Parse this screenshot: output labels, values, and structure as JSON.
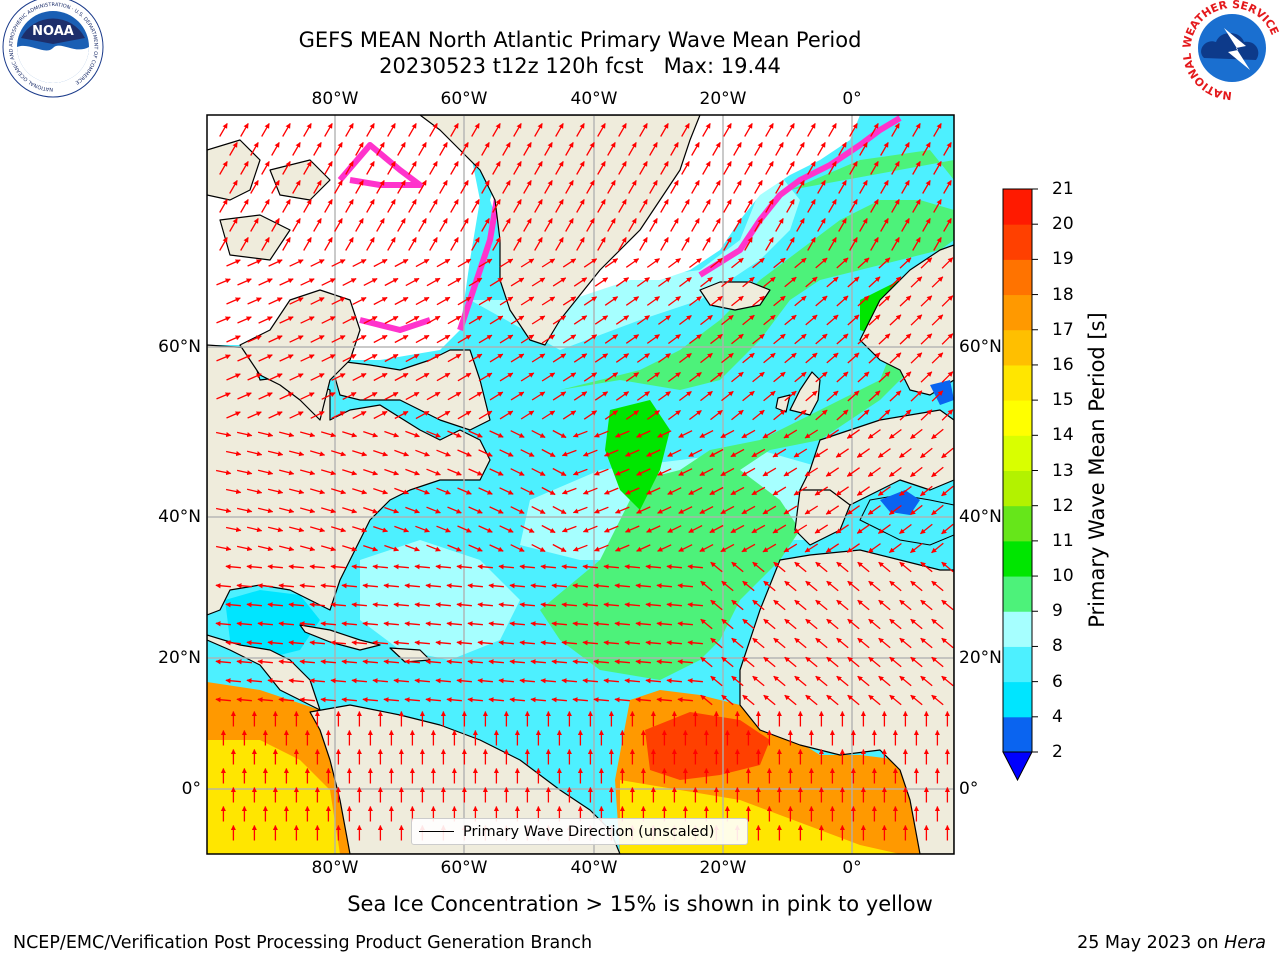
{
  "title_line1": "GEFS MEAN North Atlantic Primary Wave Mean Period",
  "title_line2": "20230523 t12z 120h fcst   Max: 19.44",
  "axes": {
    "lon_labels": [
      "80°W",
      "60°W",
      "40°W",
      "20°W",
      "0°"
    ],
    "lat_labels": [
      "60°N",
      "40°N",
      "20°N",
      "0°"
    ]
  },
  "legend": {
    "label": "Primary Wave Direction (unscaled)"
  },
  "colorbar": {
    "label": "Primary Wave Mean Period [s]",
    "ticks": [
      "2",
      "4",
      "6",
      "8",
      "9",
      "10",
      "11",
      "12",
      "13",
      "14",
      "15",
      "16",
      "17",
      "18",
      "19",
      "20",
      "21"
    ],
    "colors": [
      "#0a64f0",
      "#00e5ff",
      "#4df0ff",
      "#a6ffff",
      "#4df27a",
      "#00e600",
      "#66e61a",
      "#b3f200",
      "#d9ff00",
      "#ffff00",
      "#ffe600",
      "#ffbf00",
      "#ff9900",
      "#ff7300",
      "#ff4000",
      "#ff1a00"
    ],
    "extend_color": "#0000ff"
  },
  "colors": {
    "land": "#efecdc",
    "ice_free_polar": "#ffffff",
    "coast": "#000000",
    "grid": "#b0b0b0",
    "arrows": "#ff0000",
    "sea_ice_edge": "#ff33cc"
  },
  "logos": {
    "noaa_text": "NOAA",
    "noaa_ring": "NATIONAL OCEANIC AND ATMOSPHERIC ADMINISTRATION · U.S. DEPARTMENT OF COMMERCE",
    "nws_ring": "NATIONAL WEATHER SERVICE"
  },
  "caption": "Sea Ice Concentration > 15% is shown in pink to yellow",
  "footer": {
    "left": "NCEP/EMC/Verification Post Processing Product Generation Branch",
    "right_prefix": "25 May 2023 on ",
    "right_host": "Hera"
  }
}
